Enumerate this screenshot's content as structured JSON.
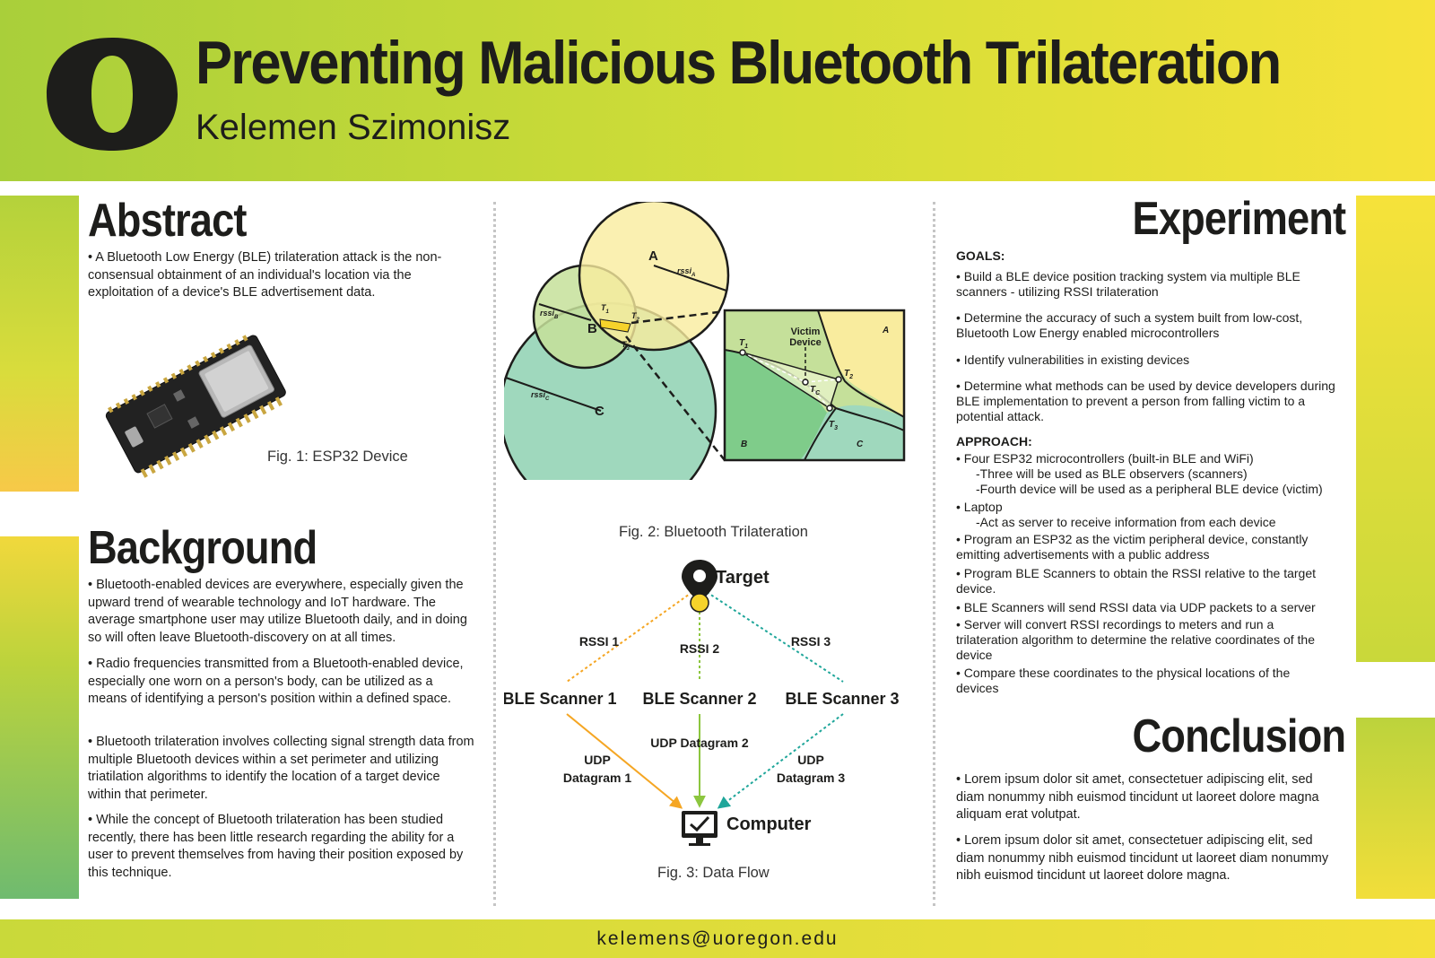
{
  "header": {
    "title": "Preventing Malicious Bluetooth Trilateration",
    "author": "Kelemen Szimonisz"
  },
  "colors": {
    "uo_green": "#a9cf3a",
    "uo_yellow": "#f6e23a",
    "text": "#1d1d1b"
  },
  "logo": {
    "icon": "uoregon-o-logo"
  },
  "abstract": {
    "heading": "Abstract",
    "text": "• A Bluetooth Low Energy (BLE) trilateration attack is the non-consensual obtainment of an individual's location via the exploitation of a device's BLE advertisement data.",
    "fig1_caption": "Fig. 1: ESP32 Device"
  },
  "background": {
    "heading": "Background",
    "paragraphs": [
      "• Bluetooth-enabled devices are everywhere, especially given the upward trend of wearable technology and IoT hardware. The average smartphone user may utilize Bluetooth daily, and in doing so will often leave Bluetooth-discovery on at all times.",
      "• Radio frequencies transmitted from a Bluetooth-enabled device, especially one worn on a person's body, can be utilized as a means of identifying a person's position within a defined space.",
      "• Bluetooth trilateration involves collecting signal strength data from multiple Bluetooth devices within a set perimeter and utilizing triatilation algorithms to identify the location of a target device within that perimeter.",
      "• While the concept of Bluetooth trilateration has been studied recently, there has been little research regarding the ability for a user to prevent themselves from having their position exposed by this technique."
    ]
  },
  "fig2": {
    "caption": "Fig. 2: Bluetooth Trilateration",
    "label_a": "A",
    "label_b": "B",
    "label_c": "C",
    "rssi": "rssi",
    "sub_a": "A",
    "sub_b": "B",
    "sub_c": "C",
    "t": "T",
    "t1": "1",
    "t2": "2",
    "t3": "3",
    "tc": "C",
    "victim_line1": "Victim",
    "victim_line2": "Device",
    "zoom_a": "A",
    "zoom_b": "B",
    "zoom_c": "C"
  },
  "fig3": {
    "caption": "Fig. 3: Data Flow",
    "target": "Target",
    "computer": "Computer",
    "rssi": [
      "RSSI 1",
      "RSSI 2",
      "RSSI 3"
    ],
    "scanners": [
      "BLE Scanner 1",
      "BLE Scanner 2",
      "BLE Scanner 3"
    ],
    "udp1": [
      "UDP",
      "Datagram 1"
    ],
    "udp2": "UDP Datagram 2",
    "udp3": [
      "UDP",
      "Datagram 3"
    ],
    "colors": {
      "flow1": "#f5a623",
      "flow2": "#8cc63f",
      "flow3": "#1fa69a"
    }
  },
  "experiment": {
    "heading": "Experiment",
    "goals_label": "GOALS:",
    "goals": [
      "• Build a BLE device position tracking system via multiple BLE scanners - utilizing RSSI trilateration",
      "• Determine the accuracy of such a system built from low-cost, Bluetooth Low Energy enabled microcontrollers",
      "• Identify  vulnerabilities in existing devices",
      "• Determine what methods can be used by device developers during BLE implementation to prevent a person from falling victim to a potential attack."
    ],
    "approach_label": "APPROACH:",
    "approach": [
      "• Four ESP32 microcontrollers (built-in BLE and WiFi)",
      "-Three will be used as BLE observers (scanners)",
      "-Fourth device will be used as a peripheral BLE device (victim)",
      "• Laptop",
      "-Act as server to receive information from each device",
      "• Program an ESP32 as the victim peripheral device, constantly emitting advertisements with a public address",
      "• Program BLE Scanners to obtain the RSSI relative to the target device.",
      "• BLE Scanners will send RSSI data via UDP packets to a server",
      "• Server will convert RSSI recordings to meters and run a trilateration algorithm to determine the relative coordinates of the device",
      "• Compare these coordinates to the physical locations of the devices"
    ]
  },
  "conclusion": {
    "heading": "Conclusion",
    "paragraphs": [
      "• Lorem ipsum dolor sit amet, consectetuer adipiscing elit, sed diam nonummy nibh euismod tincidunt ut laoreet dolore magna aliquam erat volutpat.",
      "• Lorem ipsum dolor sit amet, consectetuer adipiscing elit, sed diam nonummy nibh euismod tincidunt ut laoreet diam nonummy nibh euismod tincidunt ut laoreet dolore magna."
    ]
  },
  "footer": {
    "email": "kelemens@uoregon.edu"
  }
}
